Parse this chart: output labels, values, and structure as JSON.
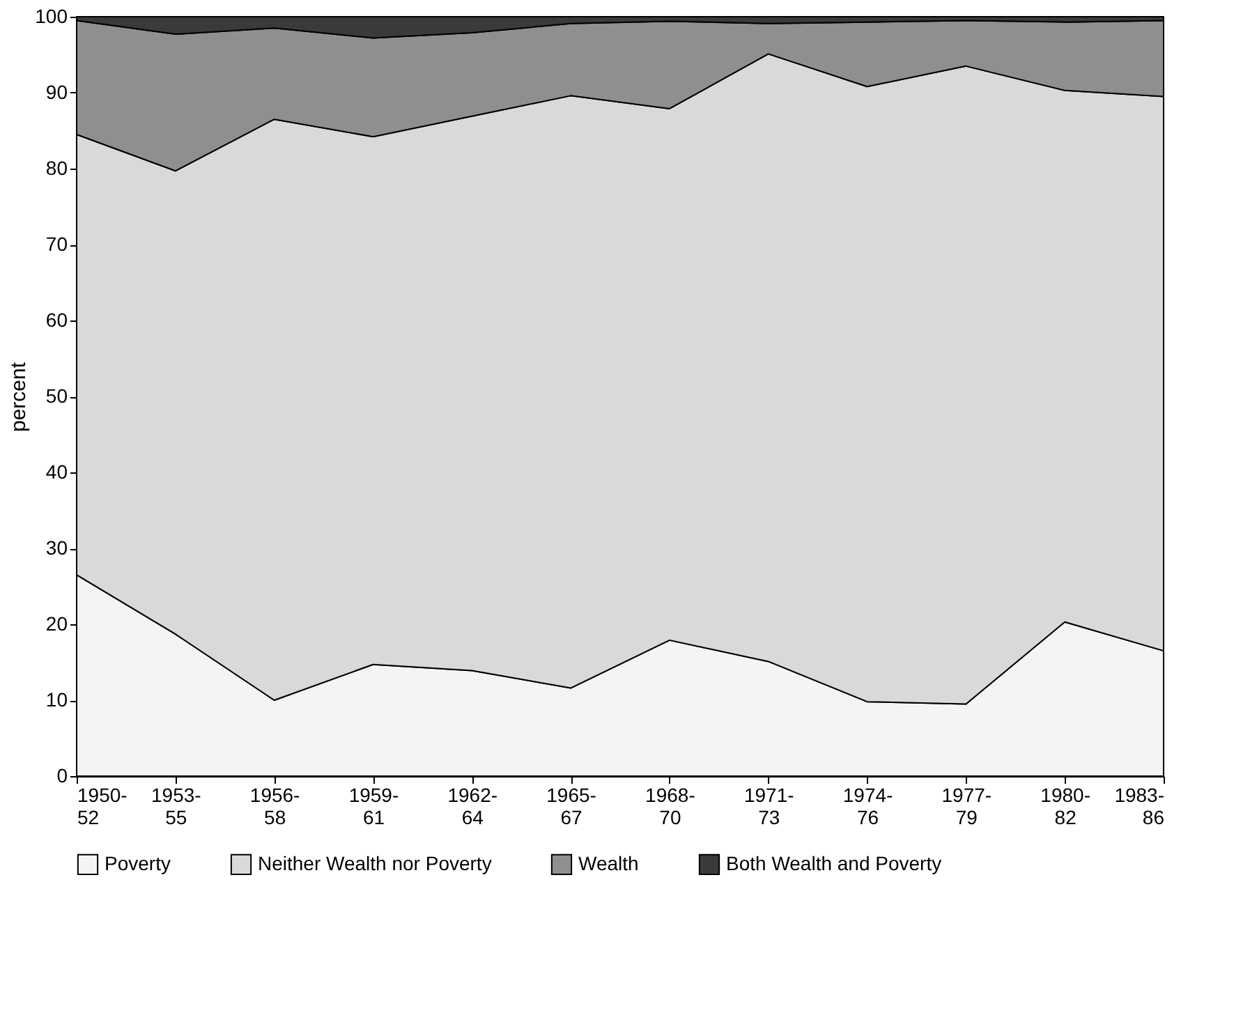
{
  "chart_data": {
    "type": "area",
    "stacked": true,
    "ylabel": "percent",
    "categories": [
      "1950-52",
      "1953-55",
      "1956-58",
      "1959-61",
      "1962-64",
      "1965-67",
      "1968-70",
      "1971-73",
      "1974-76",
      "1977-79",
      "1980-82",
      "1983-86"
    ],
    "series": [
      {
        "name": "Poverty",
        "color": "#f4f4f4",
        "values": [
          26.5,
          18.7,
          10,
          14.7,
          13.9,
          11.6,
          17.9,
          15.1,
          9.8,
          9.5,
          20.3,
          16.5
        ]
      },
      {
        "name": "Neither Wealth nor Poverty",
        "color": "#d9d9d9",
        "values": [
          58,
          61,
          76.5,
          69.5,
          73,
          78,
          70,
          80,
          81,
          84,
          70,
          73
        ]
      },
      {
        "name": "Wealth",
        "color": "#8f8f8f",
        "values": [
          15,
          18,
          12,
          13,
          11,
          9.5,
          11.5,
          4,
          8.5,
          6,
          9,
          10
        ]
      },
      {
        "name": "Both Wealth and Poverty",
        "color": "#3a3a3a",
        "values": [
          0.5,
          2.3,
          1.5,
          2.8,
          2.1,
          0.9,
          0.6,
          0.9,
          0.7,
          0.5,
          0.7,
          0.5
        ]
      }
    ],
    "ylim": [
      0,
      100
    ],
    "yticks": [
      0,
      10,
      20,
      30,
      40,
      50,
      60,
      70,
      80,
      90,
      100
    ],
    "grid": false,
    "legend": "bottom"
  }
}
